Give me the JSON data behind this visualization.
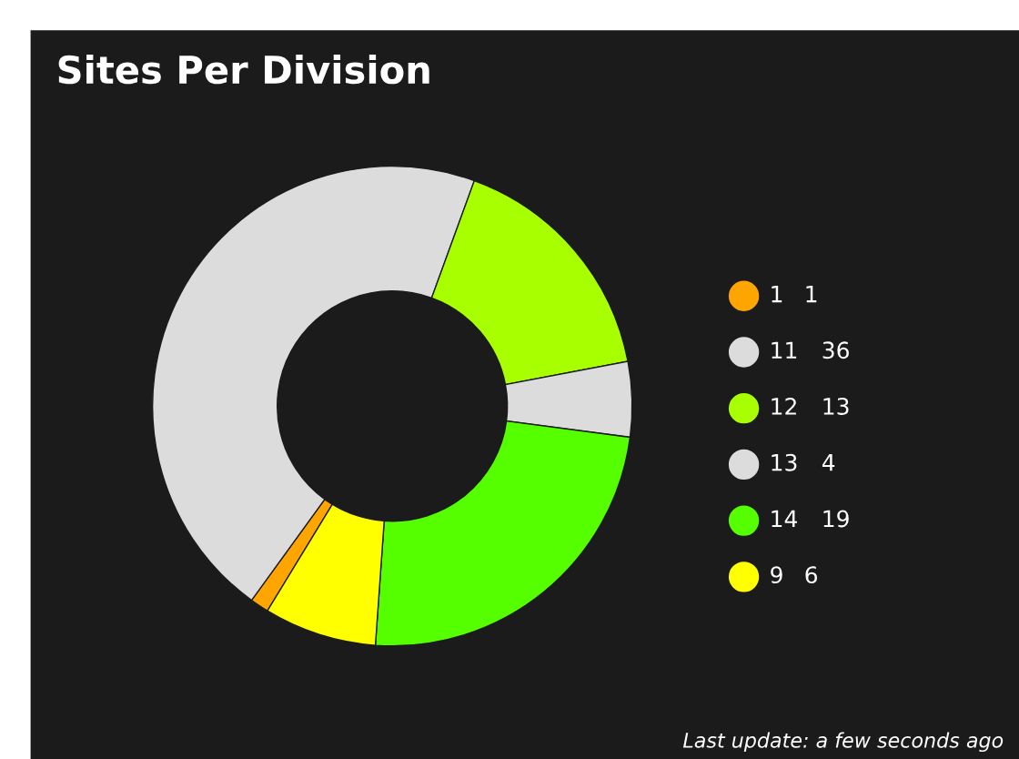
{
  "chart_data": {
    "type": "donut",
    "title": "Sites Per Division",
    "categories": [
      "1",
      "11",
      "12",
      "13",
      "14",
      "9"
    ],
    "values": [
      1,
      36,
      13,
      4,
      19,
      6
    ],
    "colors": [
      "#ffa500",
      "#dcdcdc",
      "#a8ff00",
      "#dcdcdc",
      "#55ff00",
      "#ffff00"
    ],
    "value_labels": [
      "1",
      "36",
      "13",
      "4",
      "19",
      "6"
    ],
    "legend": "right",
    "annotations": [
      "Last update: a few seconds ago"
    ]
  }
}
